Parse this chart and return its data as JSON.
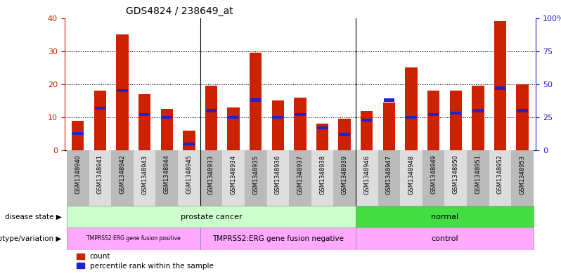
{
  "title": "GDS4824 / 238649_at",
  "samples": [
    "GSM1348940",
    "GSM1348941",
    "GSM1348942",
    "GSM1348943",
    "GSM1348944",
    "GSM1348945",
    "GSM1348933",
    "GSM1348934",
    "GSM1348935",
    "GSM1348936",
    "GSM1348937",
    "GSM1348938",
    "GSM1348939",
    "GSM1348946",
    "GSM1348947",
    "GSM1348948",
    "GSM1348949",
    "GSM1348950",
    "GSM1348951",
    "GSM1348952",
    "GSM1348953"
  ],
  "counts": [
    9,
    18,
    35,
    17,
    12.5,
    6,
    19.5,
    13,
    29.5,
    15,
    16,
    8,
    9.5,
    12,
    14.5,
    25,
    18,
    18,
    19.5,
    39,
    20
  ],
  "percentiles": [
    13,
    32,
    45,
    27,
    25,
    5,
    30,
    25,
    38,
    25,
    27,
    17,
    12,
    23,
    38,
    25,
    27,
    28,
    30,
    47,
    30
  ],
  "ylim_left": [
    0,
    40
  ],
  "ylim_right": [
    0,
    100
  ],
  "yticks_left": [
    0,
    10,
    20,
    30,
    40
  ],
  "yticks_right": [
    0,
    25,
    50,
    75,
    100
  ],
  "ytick_labels_right": [
    "0",
    "25",
    "50",
    "75",
    "100%"
  ],
  "bar_color": "#cc2200",
  "percentile_color": "#2222cc",
  "bg_color": "#ffffff",
  "disease_state_labels": [
    "prostate cancer",
    "normal"
  ],
  "genotype_labels": [
    "TMPRSS2:ERG gene fusion positive",
    "TMPRSS2:ERG gene fusion negative",
    "control"
  ],
  "group_sep_1": 5.5,
  "group_sep_2": 12.5,
  "n_samples": 21,
  "bar_width": 0.55,
  "disease_pc_color": "#ccffcc",
  "disease_norm_color": "#44dd44",
  "genotype_color": "#ffaaff",
  "tick_bg_even": "#bbbbbb",
  "tick_bg_odd": "#dddddd"
}
